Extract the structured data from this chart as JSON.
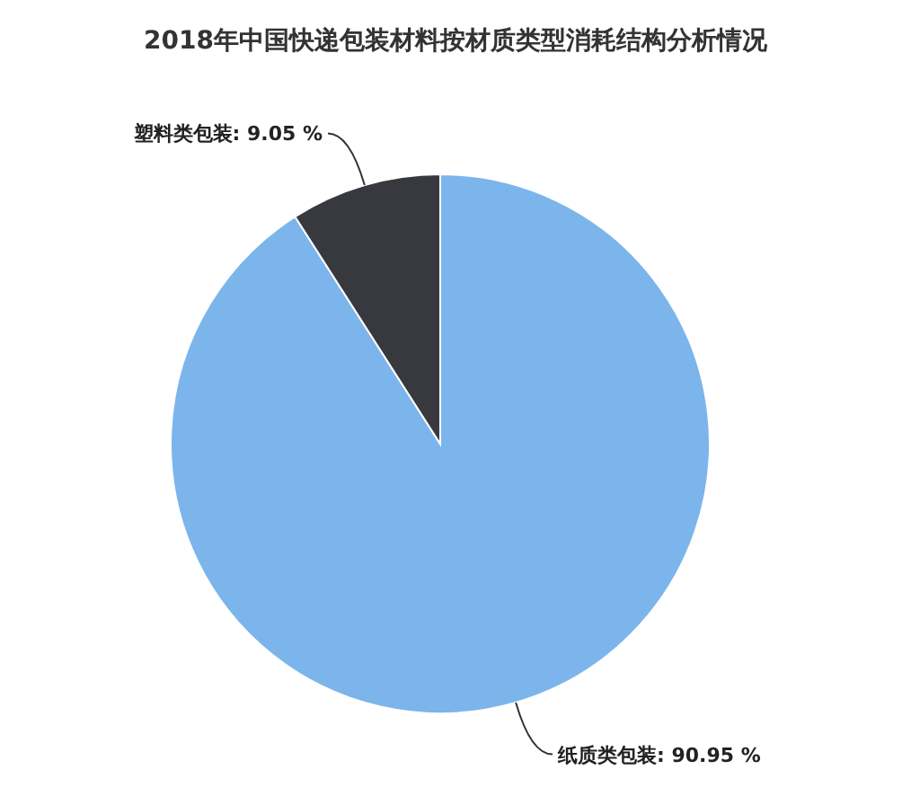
{
  "chart_data": {
    "type": "pie",
    "title": "2018年中国快递包装材料按材质类型消耗结构分析情况",
    "categories": [
      "纸质类包装",
      "塑料类包装"
    ],
    "values": [
      90.95,
      9.05
    ],
    "colors": [
      "#7cb5ec",
      "#38383f"
    ],
    "value_labels": [
      "90.95 %",
      "9.05 %"
    ],
    "legend": false
  }
}
